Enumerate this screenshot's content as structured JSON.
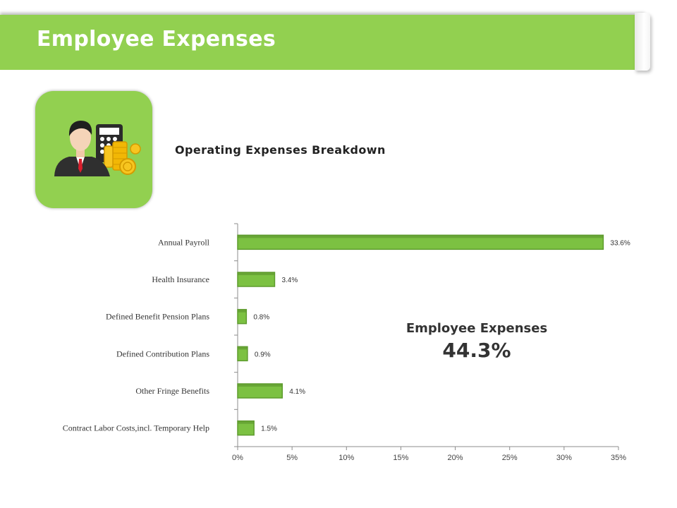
{
  "header": {
    "title": "Employee Expenses"
  },
  "subtitle": "Operating Expenses Breakdown",
  "summary": {
    "label": "Employee Expenses",
    "value": "44.3%"
  },
  "colors": {
    "accent": "#92d050",
    "bar": "#7cc142",
    "bar_dark": "#5e9c2e",
    "text": "#333333"
  },
  "icon": "businessman-calculator-coins-icon",
  "chart_data": {
    "type": "bar",
    "orientation": "horizontal",
    "title": "Operating Expenses Breakdown",
    "categories": [
      "Annual Payroll",
      "Health Insurance",
      "Defined Benefit Pension Plans",
      "Defined Contribution Plans",
      "Other Fringe Benefits",
      "Contract Labor Costs,incl. Temporary Help"
    ],
    "values": [
      33.6,
      3.4,
      0.8,
      0.9,
      4.1,
      1.5
    ],
    "value_labels": [
      "33.6%",
      "3.4%",
      "0.8%",
      "0.9%",
      "4.1%",
      "1.5%"
    ],
    "xlim": [
      0,
      35
    ],
    "xticks": [
      0,
      5,
      10,
      15,
      20,
      25,
      30,
      35
    ],
    "xtick_labels": [
      "0%",
      "5%",
      "10%",
      "15%",
      "20%",
      "25%",
      "30%",
      "35%"
    ],
    "grid": false,
    "xlabel": "",
    "ylabel": ""
  }
}
